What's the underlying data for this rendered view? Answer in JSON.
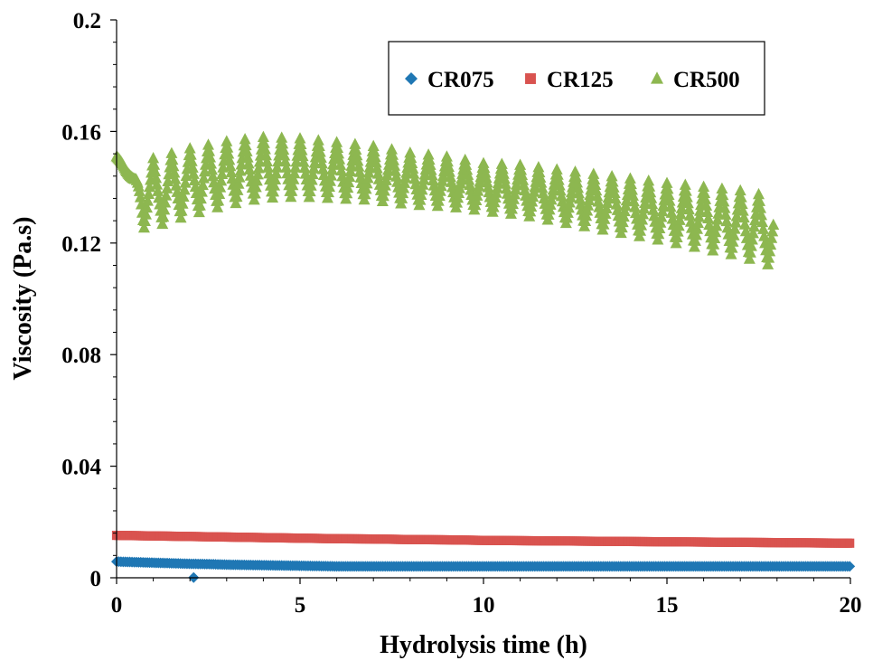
{
  "chart_data": {
    "type": "scatter",
    "title": "",
    "xlabel": "Hydrolysis time (h)",
    "ylabel": "Viscosity (Pa.s)",
    "xlim": [
      0,
      20
    ],
    "ylim": [
      0,
      0.2
    ],
    "x_ticks": [
      0,
      5,
      10,
      15,
      20
    ],
    "x_tick_labels": [
      "0",
      "5",
      "10",
      "15",
      "20"
    ],
    "y_ticks": [
      0,
      0.04,
      0.08,
      0.12,
      0.16,
      0.2
    ],
    "y_tick_labels": [
      "0",
      "0.04",
      "0.08",
      "0.12",
      "0.16",
      "0.2"
    ],
    "grid": false,
    "legend_position": "top-right",
    "series": [
      {
        "name": "CR075",
        "marker": "diamond",
        "color": "#1F77B4",
        "points": [
          [
            0.0,
            0.0058
          ],
          [
            0.5,
            0.0056
          ],
          [
            1.0,
            0.0054
          ],
          [
            1.5,
            0.0052
          ],
          [
            2.0,
            0.005
          ],
          [
            2.1,
            0.0001
          ],
          [
            2.5,
            0.0049
          ],
          [
            3.0,
            0.0047
          ],
          [
            3.5,
            0.0046
          ],
          [
            4.0,
            0.0045
          ],
          [
            4.5,
            0.0044
          ],
          [
            5.0,
            0.0043
          ],
          [
            5.5,
            0.0042
          ],
          [
            6.0,
            0.0041
          ],
          [
            6.5,
            0.0041
          ],
          [
            7.0,
            0.0041
          ],
          [
            8.0,
            0.0041
          ],
          [
            9.0,
            0.0041
          ],
          [
            10.0,
            0.0041
          ],
          [
            11.0,
            0.0041
          ],
          [
            12.0,
            0.0041
          ],
          [
            13.0,
            0.0041
          ],
          [
            14.0,
            0.0041
          ],
          [
            15.0,
            0.0041
          ],
          [
            16.0,
            0.0041
          ],
          [
            17.0,
            0.0041
          ],
          [
            18.0,
            0.0041
          ],
          [
            19.0,
            0.0041
          ],
          [
            20.0,
            0.0041
          ]
        ]
      },
      {
        "name": "CR125",
        "marker": "square",
        "color": "#D9534F",
        "points": [
          [
            0.0,
            0.0152
          ],
          [
            1.0,
            0.015
          ],
          [
            2.0,
            0.0148
          ],
          [
            3.0,
            0.0146
          ],
          [
            4.0,
            0.0144
          ],
          [
            5.0,
            0.0142
          ],
          [
            6.0,
            0.014
          ],
          [
            7.0,
            0.0139
          ],
          [
            8.0,
            0.0137
          ],
          [
            9.0,
            0.0136
          ],
          [
            10.0,
            0.0134
          ],
          [
            11.0,
            0.0133
          ],
          [
            12.0,
            0.0132
          ],
          [
            13.0,
            0.0131
          ],
          [
            14.0,
            0.013
          ],
          [
            15.0,
            0.0129
          ],
          [
            16.0,
            0.0128
          ],
          [
            17.0,
            0.0127
          ],
          [
            18.0,
            0.0126
          ],
          [
            19.0,
            0.0125
          ],
          [
            20.0,
            0.0124
          ]
        ]
      },
      {
        "name": "CR500",
        "marker": "triangle",
        "color": "#8DB750",
        "mean_curve": [
          [
            0.0,
            0.15
          ],
          [
            0.25,
            0.148
          ],
          [
            0.5,
            0.14
          ],
          [
            0.75,
            0.137
          ],
          [
            1.0,
            0.138
          ],
          [
            1.5,
            0.14
          ],
          [
            2.0,
            0.142
          ],
          [
            3.0,
            0.145
          ],
          [
            4.0,
            0.147
          ],
          [
            5.0,
            0.147
          ],
          [
            6.0,
            0.146
          ],
          [
            7.0,
            0.145
          ],
          [
            8.0,
            0.143
          ],
          [
            9.0,
            0.142
          ],
          [
            10.0,
            0.14
          ],
          [
            11.0,
            0.139
          ],
          [
            12.0,
            0.137
          ],
          [
            13.0,
            0.135
          ],
          [
            14.0,
            0.133
          ],
          [
            15.0,
            0.131
          ],
          [
            16.0,
            0.129
          ],
          [
            17.0,
            0.127
          ],
          [
            17.9,
            0.124
          ]
        ],
        "oscillation_amplitude": [
          [
            0.0,
            0.001
          ],
          [
            0.5,
            0.003
          ],
          [
            0.7,
            0.012
          ],
          [
            1.0,
            0.013
          ],
          [
            3.0,
            0.012
          ],
          [
            5.0,
            0.011
          ],
          [
            10.0,
            0.009
          ],
          [
            15.0,
            0.011
          ],
          [
            17.9,
            0.013
          ]
        ],
        "oscillation_period_h": 0.5,
        "x_range": [
          0.0,
          17.9
        ]
      }
    ]
  }
}
